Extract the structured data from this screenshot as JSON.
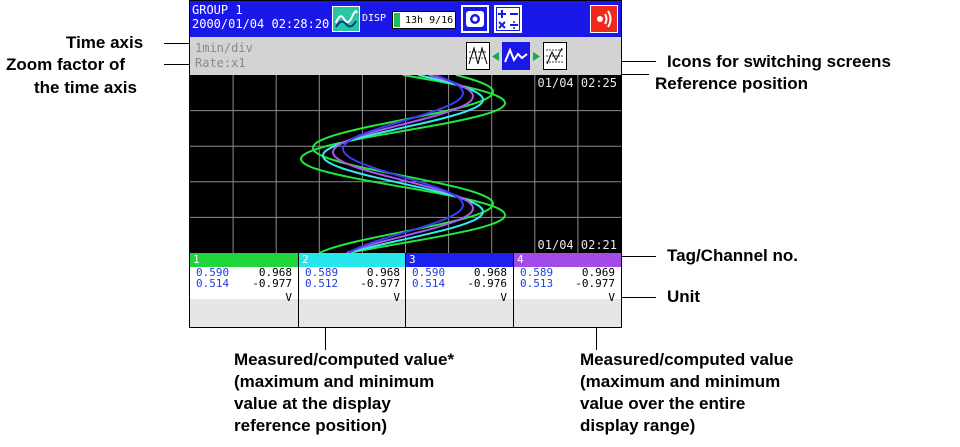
{
  "annotations": {
    "time_axis": "Time axis",
    "zoom_line1": "Zoom factor of",
    "zoom_line2": "the time axis",
    "icons_switching": "Icons for switching screens",
    "reference_position": "Reference position",
    "tag_channel": "Tag/Channel no.",
    "unit": "Unit",
    "measured_ref": [
      "Measured/computed value*",
      "(maximum and minimum",
      "value at the display",
      "reference position)"
    ],
    "measured_range": [
      "Measured/computed value",
      "(maximum and minimum",
      "value over the entire",
      "display range)"
    ]
  },
  "screen": {
    "group_name": "GROUP 1",
    "datetime": "2000/01/04 02:28:20",
    "disp_label": "DISP",
    "memory_text": "13h 9/16",
    "time_div": "1min/div",
    "rate": "Rate:x1",
    "ref_time_top": "01/04 02:25",
    "ref_time_bottom": "01/04 02:21",
    "colors": {
      "status_bar": "#1a18e8",
      "trace_green": "#22e83a",
      "trace_cyan": "#33ecf2",
      "trace_blue": "#3b3bf5",
      "trace_purple": "#ab55f2",
      "alarm": "#ee2a1c"
    }
  },
  "channels": [
    {
      "no": "1",
      "color": "#1fd53a",
      "ref_max": "0.590",
      "ref_min": "0.514",
      "max": "0.968",
      "min": "-0.977",
      "unit": "V"
    },
    {
      "no": "2",
      "color": "#27e6ec",
      "ref_max": "0.589",
      "ref_min": "0.512",
      "max": "0.968",
      "min": "-0.977",
      "unit": "V"
    },
    {
      "no": "3",
      "color": "#1d22ee",
      "ref_max": "0.590",
      "ref_min": "0.514",
      "max": "0.968",
      "min": "-0.976",
      "unit": "V"
    },
    {
      "no": "4",
      "color": "#a24be8",
      "ref_max": "0.589",
      "ref_min": "0.513",
      "max": "0.969",
      "min": "-0.977",
      "unit": "V"
    }
  ]
}
